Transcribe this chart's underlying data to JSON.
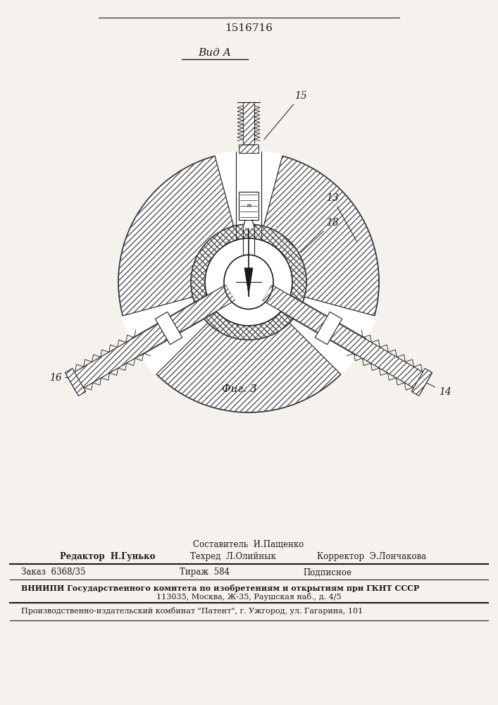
{
  "patent_number": "1516716",
  "view_label": "Вид А",
  "fig_label": "Фиг. 3",
  "bg_color": "#f5f2ee",
  "line_color": "#1a1a1a",
  "footer": {
    "sostavitel": "Составитель  И.Пащенко",
    "redaktor_label": "Редактор  Н.Гунько",
    "tekhred_label": "Техред  Л.Олийнык",
    "korrektor_label": "Корректор  Э.Лончакова",
    "zakaz_label": "Заказ  6368/35",
    "tirazh_label": "Тираж  584",
    "podpisnoe_label": "Подписное",
    "vniiipi_line1": "ВНИИПИ Государственного комитета по изобретениям и открытиям при ГКНТ СССР",
    "vniiipi_line2": "113035, Москва, Ж-35, Раушская наб., д. 4/5",
    "proizvodstvo": "Производственно-издательский комбинат \"Патент\", г. Ужгород, ул. Гагарина, 101"
  }
}
